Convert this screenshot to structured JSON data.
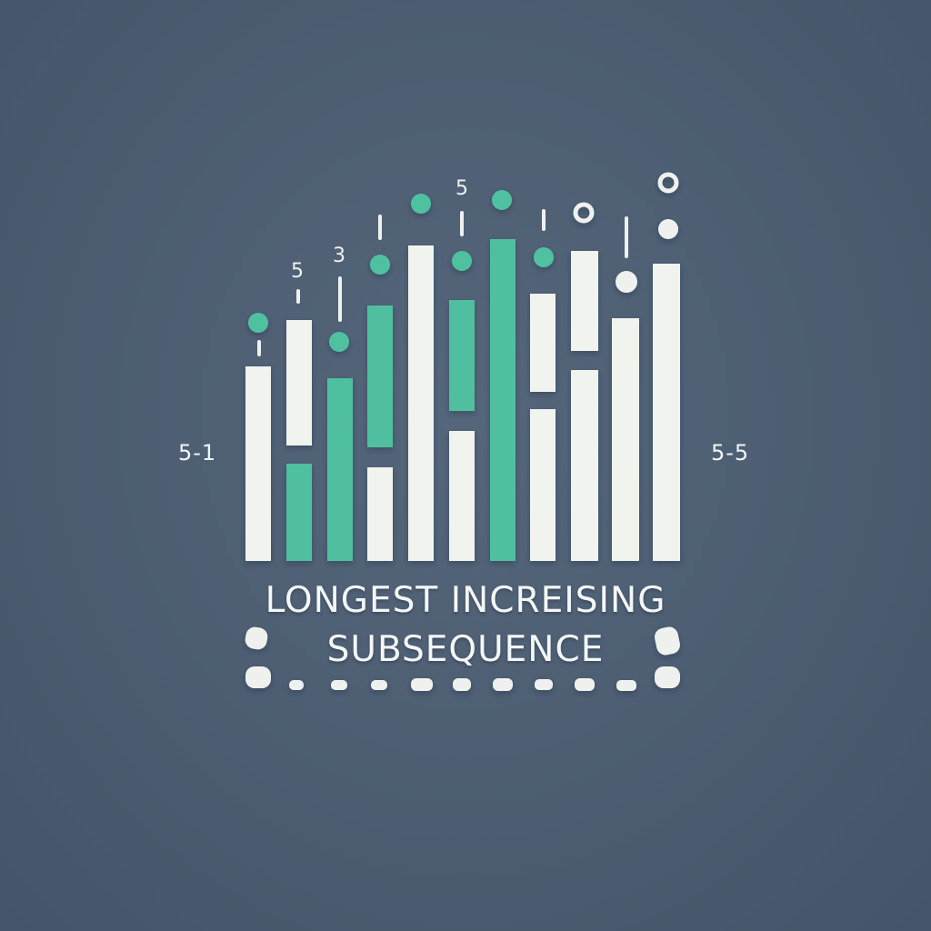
{
  "title_line1": "LONGEST INCREISING",
  "title_line2": "SUBSEQUENCE",
  "left_label": "5-1",
  "right_label": "5-5",
  "floating_numbers": [
    "5",
    "3",
    "5"
  ],
  "colors": {
    "background": "#4c5d72",
    "bar_white": "#f1f3ef",
    "bar_teal": "#4fbf9f",
    "dot_teal": "#4fc1a1",
    "dot_white": "#eef1ee"
  }
}
